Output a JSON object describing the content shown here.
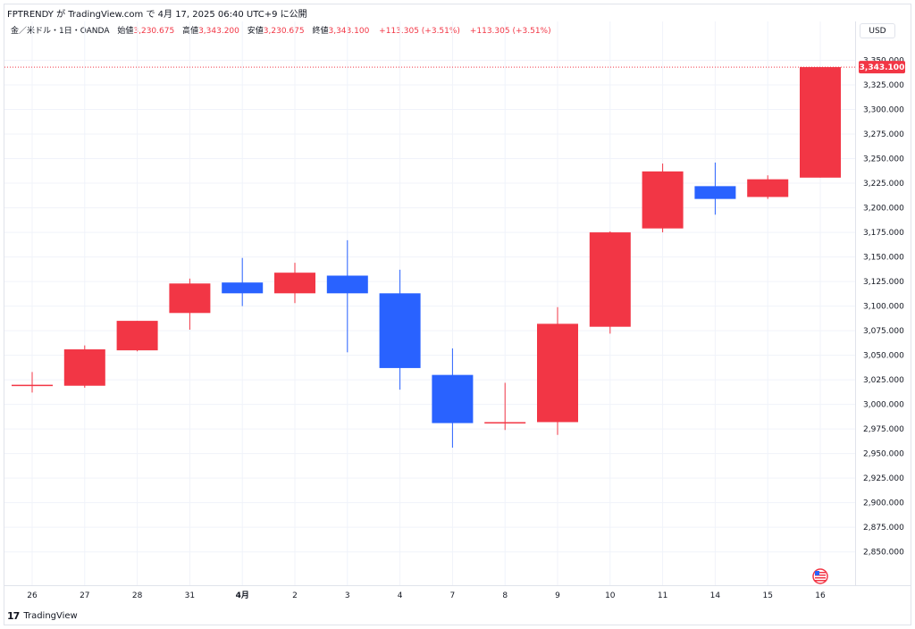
{
  "header": {
    "attribution": "FPTRENDY が TradingView.com で 4月 17, 2025 06:40 UTC+9 に公開"
  },
  "legend": {
    "symbol": "金／米ドル・1日・OANDA",
    "open_label": "始値",
    "open": "3,230.675",
    "high_label": "高値",
    "high": "3,343.200",
    "low_label": "安値",
    "low": "3,230.675",
    "close_label": "終値",
    "close": "3,343.100",
    "change_1": "+113.305 (+3.51%)",
    "change_2": "+113.305 (+3.51%)"
  },
  "axis": {
    "currency_button": "USD",
    "last_price_label": "3,343.100"
  },
  "footer": {
    "logo_mark": "17",
    "brand": "TradingView"
  },
  "colors": {
    "up": "#f23645",
    "down": "#2962ff",
    "grid": "#f0f3fa",
    "text": "#131722"
  },
  "icons": {
    "event_marker": "us-flag-icon"
  },
  "chart_data": {
    "type": "candlestick",
    "title": "",
    "xlabel": "",
    "ylabel": "",
    "ylim": [
      2837,
      3365
    ],
    "y_ticks": [
      2850,
      2875,
      2900,
      2925,
      2950,
      2975,
      3000,
      3025,
      3050,
      3075,
      3100,
      3125,
      3150,
      3175,
      3200,
      3225,
      3250,
      3275,
      3300,
      3325,
      3350
    ],
    "y_tick_labels": [
      "2,850.000",
      "2,875.000",
      "2,900.000",
      "2,925.000",
      "2,950.000",
      "2,975.000",
      "3,000.000",
      "3,025.000",
      "3,050.000",
      "3,075.000",
      "3,100.000",
      "3,125.000",
      "3,150.000",
      "3,175.000",
      "3,200.000",
      "3,225.000",
      "3,250.000",
      "3,275.000",
      "3,300.000",
      "3,325.000",
      "3,350.000"
    ],
    "categories": [
      "26",
      "27",
      "28",
      "31",
      "4月",
      "2",
      "3",
      "4",
      "7",
      "8",
      "9",
      "10",
      "11",
      "14",
      "15",
      "16"
    ],
    "ohlc": [
      {
        "open": 3019,
        "high": 3033,
        "low": 3012,
        "close": 3020
      },
      {
        "open": 3019,
        "high": 3060,
        "low": 3017,
        "close": 3056
      },
      {
        "open": 3055,
        "high": 3085,
        "low": 3054,
        "close": 3085
      },
      {
        "open": 3093,
        "high": 3128,
        "low": 3076,
        "close": 3123
      },
      {
        "open": 3124,
        "high": 3149,
        "low": 3100,
        "close": 3113
      },
      {
        "open": 3113,
        "high": 3144,
        "low": 3103,
        "close": 3134
      },
      {
        "open": 3131,
        "high": 3167,
        "low": 3053,
        "close": 3113
      },
      {
        "open": 3113,
        "high": 3137,
        "low": 3015,
        "close": 3037
      },
      {
        "open": 3030,
        "high": 3057,
        "low": 2956,
        "close": 2981
      },
      {
        "open": 2981,
        "high": 3022,
        "low": 2974,
        "close": 2982
      },
      {
        "open": 2982,
        "high": 3099,
        "low": 2969,
        "close": 3082
      },
      {
        "open": 3079,
        "high": 3176,
        "low": 3072,
        "close": 3175
      },
      {
        "open": 3179,
        "high": 3245,
        "low": 3175,
        "close": 3237
      },
      {
        "open": 3222,
        "high": 3246,
        "low": 3193,
        "close": 3209
      },
      {
        "open": 3211,
        "high": 3233,
        "low": 3209,
        "close": 3229
      },
      {
        "open": 3230.675,
        "high": 3343.2,
        "low": 3230.675,
        "close": 3343.1
      }
    ],
    "last_price": 3343.1,
    "grid": true,
    "legend_position": "top-left"
  }
}
